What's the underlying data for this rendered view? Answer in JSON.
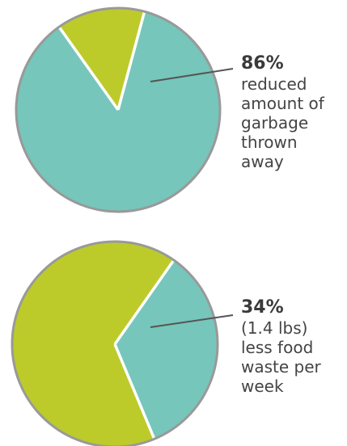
{
  "colors": {
    "teal": "#76c6bb",
    "olive": "#bccb2a",
    "outline": "#999999",
    "separator": "#ffffff",
    "leader": "#555555"
  },
  "chart_data": [
    {
      "type": "pie",
      "slices": [
        {
          "label": "reduced amount of garbage thrown away",
          "value": 86,
          "color": "#76c6bb",
          "highlight": true
        },
        {
          "label": "",
          "value": 14,
          "color": "#bccb2a",
          "highlight": false
        }
      ],
      "callout": {
        "percent": "86%",
        "description": "reduced\namount of\ngarbage\nthrown\naway"
      }
    },
    {
      "type": "pie",
      "slices": [
        {
          "label": "(1.4 lbs) less food waste per week",
          "value": 34,
          "color": "#76c6bb",
          "highlight": true
        },
        {
          "label": "",
          "value": 66,
          "color": "#bccb2a",
          "highlight": false
        }
      ],
      "callout": {
        "percent": "34%",
        "description": "(1.4 lbs)\nless food\nwaste per\nweek"
      }
    }
  ]
}
